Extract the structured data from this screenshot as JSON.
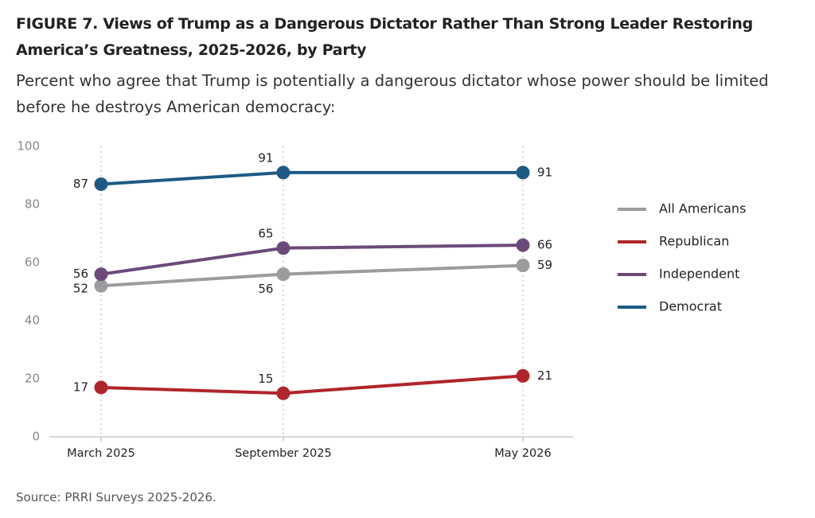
{
  "chart_data": {
    "type": "line",
    "title": "FIGURE 7.  Views of Trump as a Dangerous Dictator Rather Than Strong Leader Restoring America’s Greatness, 2025-2026, by Party",
    "subtitle": "Percent who agree that Trump is potentially a dangerous dictator whose power should be limited before he destroys American democracy:",
    "source": "Source: PRRI Surveys 2025-2026.",
    "x": [
      "March 2025",
      "September 2025",
      "May 2026"
    ],
    "series": [
      {
        "name": "All Americans",
        "color": "#9a9c9e",
        "values": [
          52,
          56,
          59
        ]
      },
      {
        "name": "Republican",
        "color": "#b0252a",
        "values": [
          17,
          15,
          21
        ]
      },
      {
        "name": "Independent",
        "color": "#6b4a7a",
        "values": [
          56,
          65,
          66
        ]
      },
      {
        "name": "Democrat",
        "color": "#1d5a85",
        "values": [
          87,
          91,
          91
        ]
      }
    ],
    "ylim": [
      0,
      100
    ],
    "yticks": [
      0,
      20,
      40,
      60,
      80,
      100
    ],
    "grid": true,
    "legend": "right"
  }
}
